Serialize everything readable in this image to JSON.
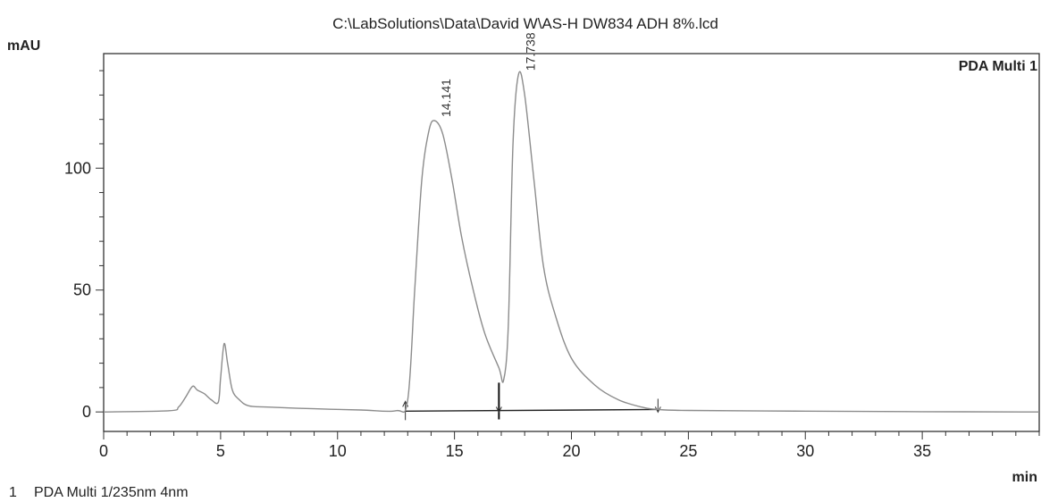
{
  "chart_data": {
    "type": "line",
    "title": "C:\\LabSolutions\\Data\\David W\\AS-H DW834 ADH 8%.lcd",
    "ylabel": "mAU",
    "xlabel": "min",
    "xlim": [
      0,
      40
    ],
    "ylim": [
      -8,
      147
    ],
    "x_ticks": [
      0,
      5,
      10,
      15,
      20,
      25,
      30,
      35
    ],
    "y_ticks": [
      0,
      50,
      100
    ],
    "grid": false,
    "legend_label": "PDA Multi 1",
    "legend_position": "top-right",
    "series": [
      {
        "color": "#8c8c8c",
        "x": [
          0,
          2.8,
          3.2,
          3.5,
          3.8,
          4.0,
          4.3,
          4.6,
          4.9,
          5.0,
          5.15,
          5.3,
          5.5,
          5.8,
          6.2,
          7,
          9,
          11,
          12.5,
          13.0,
          13.3,
          13.6,
          13.9,
          14.141,
          14.5,
          14.9,
          15.3,
          15.8,
          16.3,
          16.9,
          17.1,
          17.3,
          17.5,
          17.738,
          18.0,
          18.4,
          18.8,
          19.3,
          20,
          21,
          22,
          23,
          23.7,
          25,
          30,
          35,
          40
        ],
        "y": [
          0,
          0.5,
          2,
          6,
          10.5,
          9,
          7.5,
          5,
          4,
          14,
          28,
          20,
          9,
          5,
          2.5,
          2,
          1.3,
          0.8,
          0.5,
          5,
          50,
          95,
          115,
          119.5,
          114,
          95,
          72,
          50,
          32,
          18,
          13,
          35,
          110,
          138.5,
          130,
          95,
          60,
          40,
          22,
          11,
          5,
          2,
          1,
          0.6,
          0.3,
          0.1,
          0
        ],
        "peaks": [
          {
            "x": 14.141,
            "y": 119.5,
            "label": "14.141"
          },
          {
            "x": 17.738,
            "y": 138.5,
            "label": "17.738"
          }
        ]
      }
    ],
    "integration_marks": [
      {
        "x": 12.9,
        "direction": "up"
      },
      {
        "x": 16.9,
        "direction": "split"
      },
      {
        "x": 23.7,
        "direction": "down"
      }
    ]
  },
  "footer": {
    "trace_number": "1",
    "trace_label": "PDA Multi 1/235nm 4nm"
  }
}
